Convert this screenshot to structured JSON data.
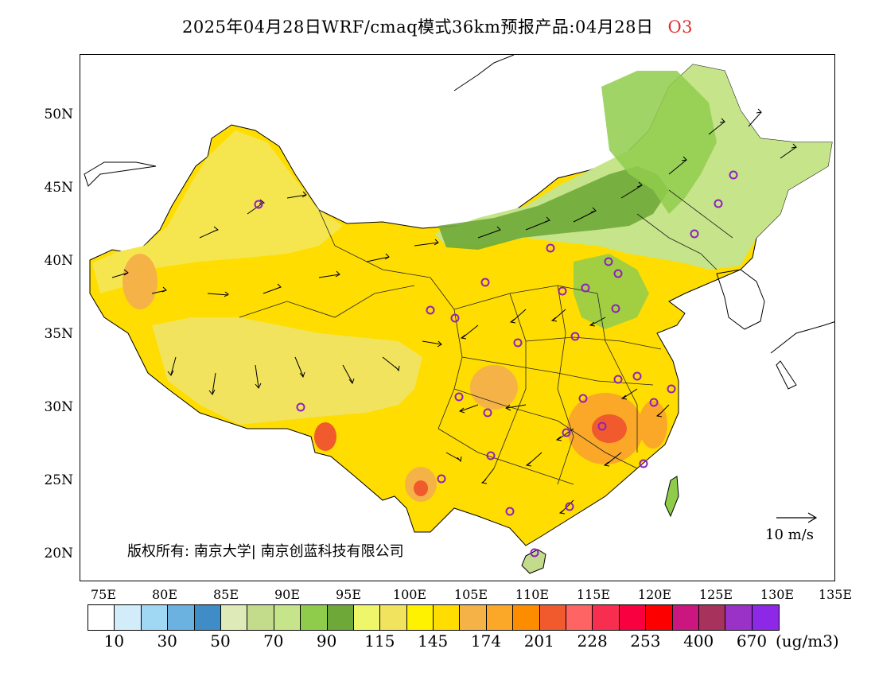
{
  "title": {
    "text": "2025年04月28日WRF/cmaq模式36km预报产品:04月28日",
    "species": "O3",
    "species_color": "#e03030"
  },
  "map": {
    "lat_labels": [
      "50N",
      "45N",
      "40N",
      "35N",
      "30N",
      "25N",
      "20N"
    ],
    "lon_labels": [
      "75E",
      "80E",
      "85E",
      "90E",
      "95E",
      "100E",
      "105E",
      "110E",
      "115E",
      "120E",
      "125E",
      "130E",
      "135E"
    ],
    "copyright": "版权所有: 南京大学| 南京创蓝科技有限公司",
    "wind_reference": "10 m/s",
    "station_marker_color": "#9020c0"
  },
  "colorbar": {
    "colors": [
      "#ffffff",
      "#d2ecfa",
      "#a0d8f4",
      "#6cb2e0",
      "#3f8cc6",
      "#deeab8",
      "#c2dc8c",
      "#c6e48a",
      "#90cc4c",
      "#6ea838",
      "#eef76a",
      "#f1e35e",
      "#fff200",
      "#ffdd00",
      "#f5b347",
      "#fba828",
      "#fd8c00",
      "#f05a2c",
      "#fe6464",
      "#f72e50",
      "#f90040",
      "#fc0000",
      "#cb1680",
      "#a7325c",
      "#9b32c8",
      "#8c28e6"
    ],
    "labels": [
      "10",
      "30",
      "50",
      "70",
      "90",
      "115",
      "145",
      "174",
      "201",
      "228",
      "253",
      "400",
      "670"
    ],
    "unit": "(ug/m3)"
  }
}
